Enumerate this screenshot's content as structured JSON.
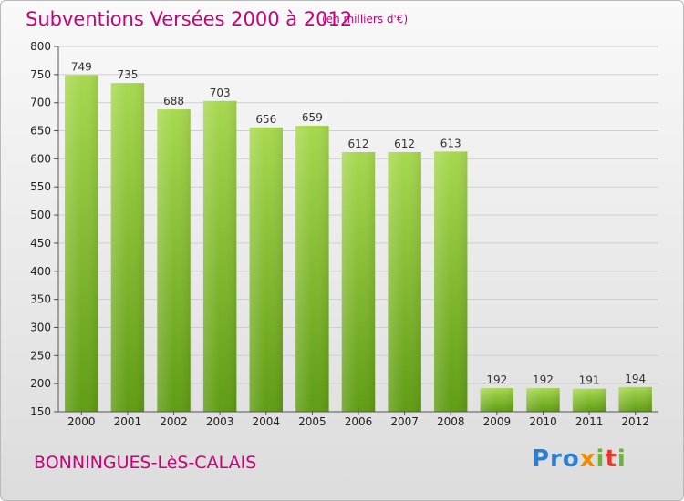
{
  "header": {
    "title": "Subventions Versées 2000 à 2012",
    "unit_note": "(en milliers d'€)"
  },
  "footer": {
    "commune": "BONNINGUES-LèS-CALAIS",
    "logo": {
      "p1": "Pro",
      "p2": "x",
      "p3": "i",
      "p4": "t",
      "p5": "i"
    }
  },
  "colors": {
    "title": "#c8007a",
    "bar_top": "#a7d84f",
    "bar_bottom": "#5f9c13",
    "grid": "#cfcfcf"
  },
  "chart_data": {
    "type": "bar",
    "title": "Subventions Versées 2000 à 2012",
    "subtitle": "(en milliers d'€)",
    "categories": [
      "2000",
      "2001",
      "2002",
      "2003",
      "2004",
      "2005",
      "2006",
      "2007",
      "2008",
      "2009",
      "2010",
      "2011",
      "2012"
    ],
    "values": [
      749,
      735,
      688,
      703,
      656,
      659,
      612,
      612,
      613,
      192,
      192,
      191,
      194
    ],
    "ylim": [
      150,
      800
    ],
    "yticks": [
      150,
      200,
      250,
      300,
      350,
      400,
      450,
      500,
      550,
      600,
      650,
      700,
      750,
      800
    ],
    "grid": true,
    "data_labels": true
  }
}
